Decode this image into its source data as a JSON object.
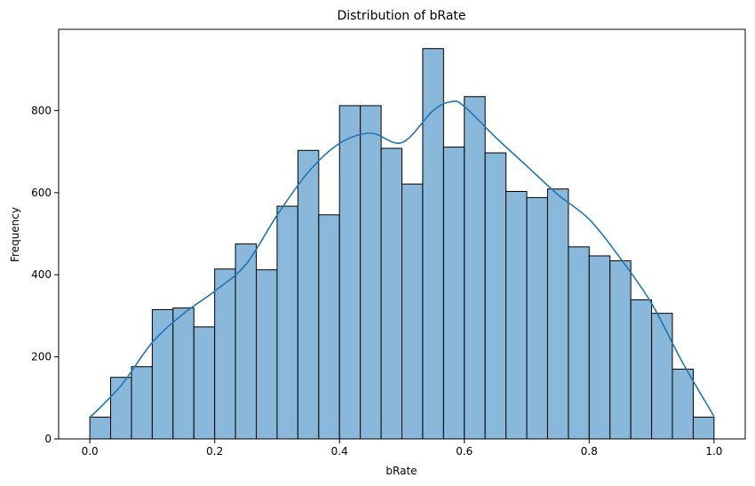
{
  "chart_data": {
    "type": "bar",
    "title": "Distribution of bRate",
    "xlabel": "bRate",
    "ylabel": "Frequency",
    "xlim": [
      -0.05,
      1.05
    ],
    "ylim": [
      0,
      998
    ],
    "bin_edges": [
      0.0,
      0.0333,
      0.0667,
      0.1,
      0.1333,
      0.1667,
      0.2,
      0.2333,
      0.2667,
      0.3,
      0.3333,
      0.3667,
      0.4,
      0.4333,
      0.4667,
      0.5,
      0.5333,
      0.5667,
      0.6,
      0.6333,
      0.6667,
      0.7,
      0.7333,
      0.7667,
      0.8,
      0.8333,
      0.8667,
      0.9,
      0.9333,
      0.9667,
      1.0
    ],
    "values": [
      53,
      150,
      176,
      315,
      319,
      273,
      414,
      475,
      412,
      567,
      703,
      546,
      812,
      812,
      708,
      621,
      951,
      711,
      834,
      697,
      603,
      588,
      609,
      468,
      446,
      434,
      339,
      306,
      170,
      53
    ],
    "kde": {
      "x": [
        0.0,
        0.05,
        0.1,
        0.15,
        0.2,
        0.25,
        0.3,
        0.35,
        0.4,
        0.45,
        0.5,
        0.55,
        0.58,
        0.6,
        0.65,
        0.7,
        0.75,
        0.8,
        0.85,
        0.9,
        0.95,
        1.0
      ],
      "y": [
        52,
        130,
        235,
        305,
        360,
        425,
        545,
        650,
        720,
        745,
        722,
        800,
        822,
        810,
        735,
        665,
        595,
        535,
        440,
        330,
        185,
        55
      ]
    },
    "x_ticks": [
      0.0,
      0.2,
      0.4,
      0.6,
      0.8,
      1.0
    ],
    "x_tick_labels": [
      "0.0",
      "0.2",
      "0.4",
      "0.6",
      "0.8",
      "1.0"
    ],
    "y_ticks": [
      0,
      200,
      400,
      600,
      800
    ],
    "y_tick_labels": [
      "0",
      "200",
      "400",
      "600",
      "800"
    ],
    "colors": {
      "bar_fill": "#8ab8db",
      "bar_edge": "#000000",
      "kde_line": "#1f77b4"
    },
    "grid": false,
    "legend": "none"
  }
}
